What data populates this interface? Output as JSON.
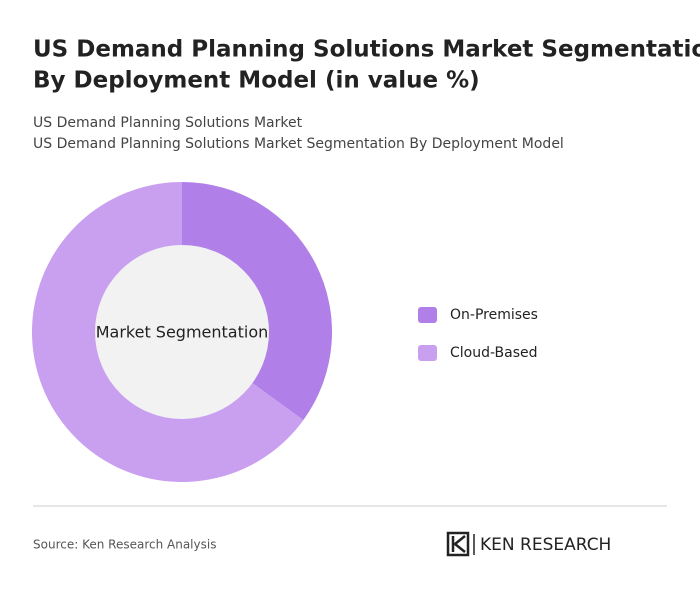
{
  "chart_data": {
    "type": "donut",
    "title": [
      "US Demand Planning Solutions Market Segmentation",
      "By Deployment Model (in value %)"
    ],
    "subtitle": [
      "US Demand Planning Solutions Market",
      "US Demand Planning Solutions Market Segmentation By Deployment Model"
    ],
    "center_label": "Market Segmentation",
    "categories": [
      "On-Premises",
      "Cloud-Based"
    ],
    "values": [
      35,
      65
    ],
    "colors": [
      "#b07fe8",
      "#c99ff0"
    ]
  },
  "footer": {
    "source": "Source: Ken Research Analysis",
    "logo": "KEN RESEARCH"
  }
}
